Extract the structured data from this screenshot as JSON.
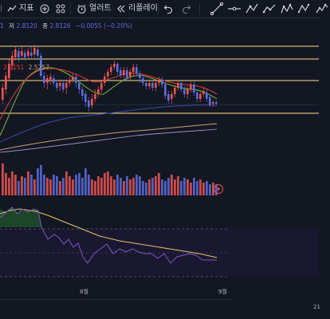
{
  "toolbar": {
    "indicators_label": "지표",
    "alerts_label": "얼러트",
    "replay_label": "리플레이"
  },
  "legend": {
    "low_label": "저",
    "low_value": "2.8120",
    "close_label": "종",
    "close_value": "2.8126",
    "change": "−0.0055 (−0.20%)",
    "ma_value_1": "2.6151",
    "ma_value_2": "2.5257"
  },
  "xaxis": {
    "label_aug": "8월",
    "label_sep": "9월",
    "label_21": "21"
  },
  "colors": {
    "background": "#131722",
    "up": "#ef5350",
    "down": "#5b6ee1",
    "horizontal_line": "#ffe082",
    "ma_fast": "#7cb342",
    "ma_mid": "#e53935",
    "ma_slow_1": "#c8a07a",
    "ma_slow_2": "#3949ab",
    "oscillator": "#7e57c2",
    "oscillator_signal": "#e6c46b"
  },
  "chart_data": {
    "type": "candlestick",
    "x_labels": [
      "8월",
      "9월",
      "21"
    ],
    "horizontal_lines": 4,
    "oscillator": {
      "type": "line",
      "series_count": 2
    }
  }
}
